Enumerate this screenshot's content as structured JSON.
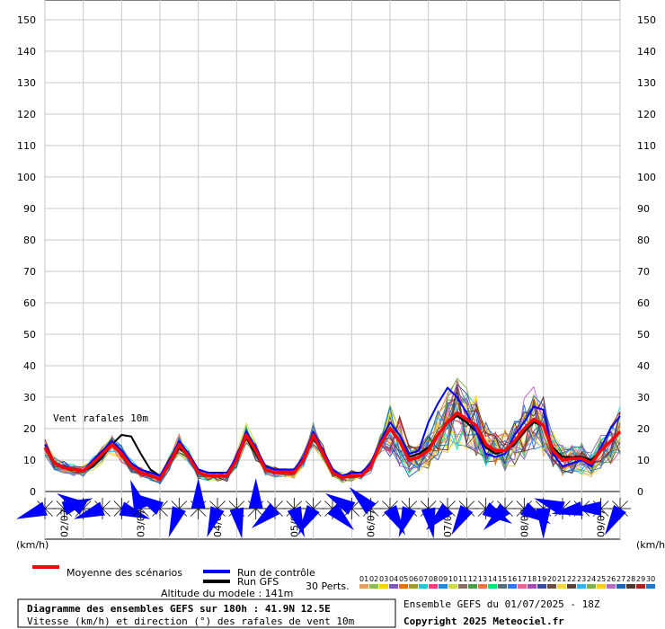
{
  "chart_data": {
    "type": "line",
    "unit_label_left": "(km/h)",
    "unit_label_right": "(km/h)",
    "y_ticks": [
      0,
      10,
      20,
      30,
      40,
      50,
      60,
      70,
      80,
      90,
      100,
      110,
      120,
      130,
      140,
      150
    ],
    "ylim": [
      0,
      150
    ],
    "x_hours": [
      0,
      180
    ],
    "date_labels": [
      {
        "label": "02/07",
        "hour": 6
      },
      {
        "label": "03/07",
        "hour": 30
      },
      {
        "label": "04/07",
        "hour": 54
      },
      {
        "label": "05/07",
        "hour": 78
      },
      {
        "label": "06/07",
        "hour": 102
      },
      {
        "label": "07/07",
        "hour": 126
      },
      {
        "label": "08/07",
        "hour": 150
      },
      {
        "label": "09/07",
        "hour": 174
      }
    ],
    "annotation": "Vent rafales 10m",
    "series": [
      {
        "name": "Moyenne des scénarios",
        "color": "#ff0000",
        "x": [
          0,
          3,
          6,
          9,
          12,
          15,
          18,
          21,
          24,
          27,
          30,
          33,
          36,
          39,
          42,
          45,
          48,
          51,
          54,
          57,
          60,
          63,
          66,
          69,
          72,
          75,
          78,
          81,
          84,
          87,
          90,
          93,
          96,
          99,
          102,
          105,
          108,
          111,
          114,
          117,
          120,
          123,
          126,
          129,
          132,
          135,
          138,
          141,
          144,
          147,
          150,
          153,
          156,
          159,
          162,
          165,
          168,
          171,
          174,
          177,
          180
        ],
        "values": [
          14,
          9,
          7.5,
          7,
          6.5,
          9,
          12,
          15,
          12,
          8,
          6,
          5,
          4,
          9,
          15,
          11,
          6,
          5,
          5,
          5,
          10,
          18,
          13,
          7,
          6,
          6,
          6,
          10,
          18,
          12,
          6,
          4.5,
          5,
          5,
          8,
          15,
          20,
          16,
          10,
          11,
          13,
          18,
          22,
          25,
          23,
          21,
          15,
          13,
          13,
          16,
          20,
          23,
          21,
          13,
          10,
          10.5,
          10.5,
          9,
          13,
          16,
          19
        ]
      },
      {
        "name": "Run de contrôle",
        "color": "#0000ff",
        "x": [
          0,
          3,
          6,
          9,
          12,
          15,
          18,
          21,
          24,
          27,
          30,
          33,
          36,
          39,
          42,
          45,
          48,
          51,
          54,
          57,
          60,
          63,
          66,
          69,
          72,
          75,
          78,
          81,
          84,
          87,
          90,
          93,
          96,
          99,
          102,
          105,
          108,
          111,
          114,
          117,
          120,
          123,
          126,
          129,
          132,
          135,
          138,
          141,
          144,
          147,
          150,
          153,
          156,
          159,
          162,
          165,
          168,
          171,
          174,
          177,
          180
        ],
        "values": [
          15,
          9,
          8,
          7,
          6.5,
          10,
          13,
          16,
          13,
          9,
          7,
          6,
          5,
          10,
          16,
          12,
          7,
          6,
          6,
          6,
          11,
          19,
          14,
          8,
          7,
          7,
          7,
          11,
          19,
          13,
          7,
          5,
          6,
          6,
          9,
          16,
          22,
          18,
          12,
          13,
          22,
          28,
          33,
          30,
          25,
          19,
          12,
          11,
          12,
          18,
          22,
          27,
          26,
          12,
          8,
          9,
          10,
          8,
          14,
          20,
          24
        ]
      },
      {
        "name": "Run GFS",
        "color": "#000000",
        "x": [
          0,
          3,
          6,
          9,
          12,
          15,
          18,
          21,
          24,
          27,
          30,
          33,
          36,
          39,
          42,
          45,
          48,
          51,
          54,
          57,
          60,
          63,
          66,
          69,
          72,
          75,
          78,
          81,
          84,
          87,
          90,
          93,
          96,
          99,
          102,
          105,
          108,
          111,
          114,
          117,
          120,
          123,
          126,
          129,
          132,
          135,
          138,
          141,
          144,
          147,
          150,
          153,
          156,
          159,
          162,
          165,
          168,
          171,
          174,
          177,
          180
        ],
        "values": [
          14,
          9,
          8,
          7,
          6.5,
          8,
          11,
          15,
          18,
          17.5,
          12,
          7,
          5,
          9,
          14,
          11,
          7,
          6,
          6,
          6,
          10,
          17,
          12,
          7,
          6,
          6,
          6,
          10,
          17,
          12,
          6,
          5,
          5,
          5,
          8,
          15,
          20,
          16,
          11,
          12,
          14,
          18,
          22,
          24,
          22,
          19,
          14,
          12,
          13,
          15,
          19,
          22,
          21,
          14,
          11,
          11,
          11,
          10,
          13,
          16,
          19
        ]
      }
    ],
    "ensemble_count": 30,
    "ensemble_label": "30 Perts.",
    "ensemble_members": [
      "01",
      "02",
      "03",
      "04",
      "05",
      "06",
      "07",
      "08",
      "09",
      "10",
      "11",
      "12",
      "13",
      "14",
      "15",
      "16",
      "17",
      "18",
      "19",
      "20",
      "21",
      "22",
      "23",
      "24",
      "25",
      "26",
      "27",
      "28",
      "29",
      "30"
    ],
    "ensemble_colors": [
      "#e8a05a",
      "#8bc34a",
      "#ffd400",
      "#7e57c2",
      "#ef6c00",
      "#9e9d24",
      "#26c6da",
      "#ec407a",
      "#1e88e5",
      "#cddc39",
      "#8d6e63",
      "#43a047",
      "#ff7043",
      "#00e676",
      "#546e7a",
      "#2979ff",
      "#f06292",
      "#ab47bc",
      "#3949ab",
      "#6d4c41",
      "#fdd835",
      "#5d4037",
      "#29b6f6",
      "#7cb342",
      "#ffca28",
      "#ba68c8",
      "#1565c0",
      "#4e342e",
      "#b71c1c",
      "#1976d2"
    ],
    "wind_directions_deg": [
      250,
      70,
      300,
      250,
      110,
      340,
      300,
      200,
      0,
      200,
      170,
      0,
      230,
      160,
      210,
      135,
      300,
      315,
      150,
      200,
      170,
      225,
      210,
      120,
      225,
      120,
      180,
      290,
      260,
      270,
      210
    ],
    "wind_direction_hours": [
      0,
      6,
      12,
      18,
      24,
      30,
      36,
      42,
      48,
      54,
      60,
      66,
      72,
      78,
      84,
      90,
      96,
      102,
      108,
      114,
      120,
      126,
      132,
      138,
      144,
      150,
      156,
      162,
      168,
      174,
      180
    ]
  },
  "legend": {
    "mean_label": "Moyenne des scénarios",
    "control_label": "Run de contrôle",
    "gfs_label": "Run GFS",
    "altitude": "Altitude du modele : 141m",
    "perts_label": "30 Perts."
  },
  "footer": {
    "title": "Diagramme des ensembles GEFS sur 180h : 41.9N 12.5E",
    "subtitle": "Vitesse (km/h) et direction (°) des rafales de vent 10m",
    "run_info": "Ensemble GEFS du 01/07/2025 - 18Z",
    "copyright": "Copyright 2025 Meteociel.fr"
  },
  "colors": {
    "mean": "#ff0000",
    "control": "#0000ff",
    "gfs": "#000000",
    "wind_fill": "#0000ff",
    "grid": "#c8c8c8"
  }
}
